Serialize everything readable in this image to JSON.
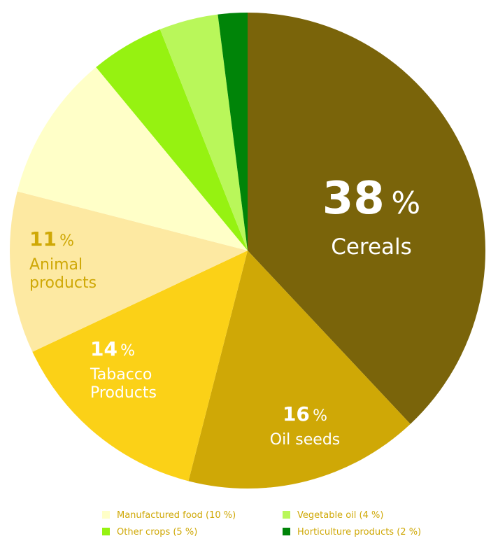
{
  "chart_data": {
    "type": "pie",
    "start_angle_deg": 0,
    "direction": "clockwise",
    "slices": [
      {
        "label": "Cereals",
        "value": 38,
        "color": "#7a640a",
        "label_lines": [
          "Cereals"
        ],
        "label_color": "#ffffff",
        "show_label": true
      },
      {
        "label": "Oil seeds",
        "value": 16,
        "color": "#cfa806",
        "label_lines": [
          "Oil seeds"
        ],
        "label_color": "#ffffff",
        "show_label": true
      },
      {
        "label": "Tabacco Products",
        "value": 14,
        "color": "#fbd117",
        "label_lines": [
          "Tabacco",
          "Products"
        ],
        "label_color": "#ffffff",
        "show_label": true
      },
      {
        "label": "Animal products",
        "value": 11,
        "color": "#fde9a2",
        "label_lines": [
          "Animal",
          "products"
        ],
        "label_color": "#cfa806",
        "show_label": true
      },
      {
        "label": "Manufactured food",
        "value": 10,
        "color": "#ffffc8",
        "show_label": false
      },
      {
        "label": "Other crops",
        "value": 5,
        "color": "#96f211",
        "show_label": false
      },
      {
        "label": "Vegetable oil",
        "value": 4,
        "color": "#b9f75a",
        "show_label": false
      },
      {
        "label": "Horticulture products",
        "value": 2,
        "color": "#008408",
        "show_label": false
      }
    ],
    "percent_suffix": "%",
    "legend": [
      {
        "text": "Manufactured food (10 %)",
        "color": "#ffffc8"
      },
      {
        "text": "Vegetable oil (4 %)",
        "color": "#b9f75a"
      },
      {
        "text": "Other crops (5 %)",
        "color": "#96f211"
      },
      {
        "text": "Horticulture products (2 %)",
        "color": "#008408"
      }
    ],
    "legend_text_color": "#cfa806",
    "legend_placement": "bottom-right"
  }
}
